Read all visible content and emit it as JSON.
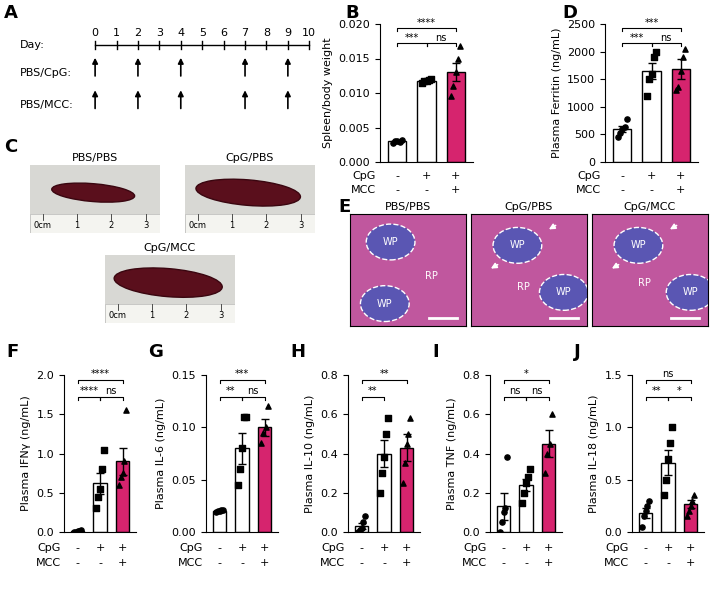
{
  "timeline": {
    "panel_label": "A",
    "axis_label": "Day:",
    "days": [
      0,
      1,
      2,
      3,
      4,
      5,
      6,
      7,
      8,
      9,
      10
    ],
    "rows": [
      {
        "label": "PBS/CpG:",
        "days": [
          0,
          2,
          4,
          7,
          9
        ]
      },
      {
        "label": "PBS/MCC:",
        "days": [
          0,
          2,
          4,
          7,
          9
        ]
      }
    ]
  },
  "photos": {
    "panel_label": "C",
    "images": [
      "PBS/PBS",
      "CpG/PBS",
      "CpG/MCC"
    ],
    "ruler": [
      "0cm",
      "1",
      "2",
      "3"
    ]
  },
  "histology": {
    "panel_label": "E",
    "images": [
      {
        "label": "PBS/PBS",
        "regions": [
          "WP",
          "WP",
          "RP"
        ]
      },
      {
        "label": "CpG/PBS",
        "regions": [
          "WP",
          "RP",
          "WP"
        ]
      },
      {
        "label": "CpG/MCC",
        "regions": [
          "WP",
          "RP",
          "WP"
        ]
      }
    ]
  },
  "conditions": [
    {
      "name": "CpG",
      "marks": [
        "-",
        "+",
        "+"
      ]
    },
    {
      "name": "MCC",
      "marks": [
        "-",
        "-",
        "+"
      ]
    }
  ],
  "chart_data": [
    {
      "type": "bar",
      "panel_label": "B",
      "y_label": "Spleen/body weight",
      "categories": [
        null,
        null,
        null
      ],
      "values": [
        0.003,
        0.0118,
        0.0131
      ],
      "errors": [
        0.0001,
        0.0002,
        0.0013
      ],
      "points": [
        [
          0.0028,
          0.003,
          0.0031,
          0.0029,
          0.0032
        ],
        [
          0.0115,
          0.0117,
          0.0118,
          0.0119,
          0.0121
        ],
        [
          0.0095,
          0.011,
          0.013,
          0.015,
          0.0168
        ]
      ],
      "colors": [
        "#ffffff",
        "#ffffff",
        "#d6246e"
      ],
      "ylim": [
        0,
        0.02
      ],
      "yticks": [
        {
          "value": 0,
          "label": "0.000"
        },
        {
          "value": 0.005,
          "label": "0.005"
        },
        {
          "value": 0.01,
          "label": "0.010"
        },
        {
          "value": 0.015,
          "label": "0.015"
        },
        {
          "value": 0.02,
          "label": "0.020"
        }
      ],
      "significance": [
        {
          "groups": [
            0,
            1
          ],
          "label": "***"
        },
        {
          "groups": [
            0,
            2
          ],
          "label": "****"
        },
        {
          "groups": [
            1,
            2
          ],
          "label": "ns"
        }
      ]
    },
    {
      "type": "bar",
      "panel_label": "D",
      "y_label": "Plasma Ferritin (ng/mL)",
      "categories": [
        null,
        null,
        null
      ],
      "values": [
        600,
        1650,
        1680
      ],
      "errors": [
        60,
        150,
        180
      ],
      "points": [
        [
          450,
          520,
          600,
          640,
          780
        ],
        [
          1200,
          1500,
          1600,
          1900,
          2000
        ],
        [
          1300,
          1350,
          1650,
          1900,
          2050
        ]
      ],
      "colors": [
        "#ffffff",
        "#ffffff",
        "#d6246e"
      ],
      "ylim": [
        0,
        2500
      ],
      "yticks": [
        0,
        500,
        1000,
        1500,
        2000,
        2500
      ],
      "significance": [
        {
          "groups": [
            0,
            1
          ],
          "label": "***"
        },
        {
          "groups": [
            0,
            2
          ],
          "label": "***"
        },
        {
          "groups": [
            1,
            2
          ],
          "label": "ns"
        }
      ]
    },
    {
      "type": "bar",
      "panel_label": "F",
      "y_label": "Plasma IFNγ (ng/mL)",
      "categories": [
        null,
        null,
        null
      ],
      "values": [
        0.01,
        0.62,
        0.9
      ],
      "errors": [
        0.005,
        0.13,
        0.17
      ],
      "points": [
        [
          0.0,
          0.005,
          0.01,
          0.01,
          0.02
        ],
        [
          0.3,
          0.45,
          0.55,
          0.8,
          1.05
        ],
        [
          0.6,
          0.7,
          0.75,
          0.9,
          1.55
        ]
      ],
      "colors": [
        "#ffffff",
        "#ffffff",
        "#d6246e"
      ],
      "ylim": [
        0,
        2
      ],
      "yticks": [
        {
          "value": 0,
          "label": "0.0"
        },
        0.5,
        {
          "value": 1,
          "label": "1.0"
        },
        1.5,
        {
          "value": 2,
          "label": "2.0"
        }
      ],
      "significance": [
        {
          "groups": [
            0,
            1
          ],
          "label": "****"
        },
        {
          "groups": [
            0,
            2
          ],
          "label": "****"
        },
        {
          "groups": [
            1,
            2
          ],
          "label": "ns"
        }
      ]
    },
    {
      "type": "bar",
      "panel_label": "G",
      "y_label": "Plasma IL-6 (ng/mL)",
      "categories": [
        null,
        null,
        null
      ],
      "values": [
        0.02,
        0.08,
        0.1
      ],
      "errors": [
        0.001,
        0.015,
        0.008
      ],
      "points": [
        [
          0.019,
          0.02,
          0.02,
          0.021,
          0.021
        ],
        [
          0.045,
          0.06,
          0.08,
          0.11,
          0.11
        ],
        [
          0.085,
          0.095,
          0.1,
          0.12
        ]
      ],
      "colors": [
        "#ffffff",
        "#ffffff",
        "#d6246e"
      ],
      "ylim": [
        0,
        0.15
      ],
      "yticks": [
        {
          "value": 0,
          "label": "0.00"
        },
        0.05,
        {
          "value": 0.1,
          "label": "0.10"
        },
        0.15
      ],
      "significance": [
        {
          "groups": [
            0,
            1
          ],
          "label": "**"
        },
        {
          "groups": [
            0,
            2
          ],
          "label": "***"
        },
        {
          "groups": [
            1,
            2
          ],
          "label": "ns"
        }
      ]
    },
    {
      "type": "bar",
      "panel_label": "H",
      "y_label": "Plasma IL-10 (ng/mL)",
      "categories": [
        null,
        null,
        null
      ],
      "values": [
        0.03,
        0.4,
        0.43
      ],
      "errors": [
        0.015,
        0.07,
        0.07
      ],
      "points": [
        [
          0.0,
          0.01,
          0.02,
          0.05,
          0.08
        ],
        [
          0.2,
          0.3,
          0.38,
          0.5,
          0.58
        ],
        [
          0.25,
          0.35,
          0.45,
          0.5,
          0.58
        ]
      ],
      "colors": [
        "#ffffff",
        "#ffffff",
        "#d6246e"
      ],
      "ylim": [
        0,
        0.8
      ],
      "yticks": [
        {
          "value": 0,
          "label": "0.0"
        },
        0.2,
        0.4,
        0.6,
        0.8
      ],
      "significance": [
        {
          "groups": [
            0,
            1
          ],
          "label": "**"
        },
        {
          "groups": [
            0,
            2
          ],
          "label": "**"
        }
      ]
    },
    {
      "type": "bar",
      "panel_label": "I",
      "y_label": "Plasma TNF (ng/mL)",
      "categories": [
        null,
        null,
        null
      ],
      "values": [
        0.13,
        0.24,
        0.45
      ],
      "errors": [
        0.07,
        0.03,
        0.07
      ],
      "points": [
        [
          0.0,
          0.05,
          0.1,
          0.12,
          0.38
        ],
        [
          0.15,
          0.2,
          0.25,
          0.28,
          0.32
        ],
        [
          0.3,
          0.4,
          0.45,
          0.6
        ]
      ],
      "colors": [
        "#ffffff",
        "#ffffff",
        "#d6246e"
      ],
      "ylim": [
        0,
        0.8
      ],
      "yticks": [
        {
          "value": 0,
          "label": "0.0"
        },
        0.2,
        0.4,
        0.6,
        0.8
      ],
      "significance": [
        {
          "groups": [
            0,
            1
          ],
          "label": "ns"
        },
        {
          "groups": [
            0,
            2
          ],
          "label": "*"
        },
        {
          "groups": [
            1,
            2
          ],
          "label": "ns"
        }
      ]
    },
    {
      "type": "bar",
      "panel_label": "J",
      "y_label": "Plasma IL-18 (ng/mL)",
      "categories": [
        null,
        null,
        null
      ],
      "values": [
        0.18,
        0.66,
        0.27
      ],
      "errors": [
        0.05,
        0.12,
        0.04
      ],
      "points": [
        [
          0.05,
          0.15,
          0.2,
          0.25,
          0.3
        ],
        [
          0.35,
          0.5,
          0.7,
          0.85,
          1.0
        ],
        [
          0.15,
          0.2,
          0.25,
          0.3,
          0.35
        ]
      ],
      "colors": [
        "#ffffff",
        "#ffffff",
        "#d6246e"
      ],
      "ylim": [
        0,
        1.5
      ],
      "yticks": [
        {
          "value": 0,
          "label": "0.0"
        },
        0.5,
        {
          "value": 1,
          "label": "1.0"
        },
        1.5
      ],
      "significance": [
        {
          "groups": [
            0,
            1
          ],
          "label": "**"
        },
        {
          "groups": [
            0,
            2
          ],
          "label": "ns"
        },
        {
          "groups": [
            1,
            2
          ],
          "label": "*"
        }
      ]
    }
  ]
}
